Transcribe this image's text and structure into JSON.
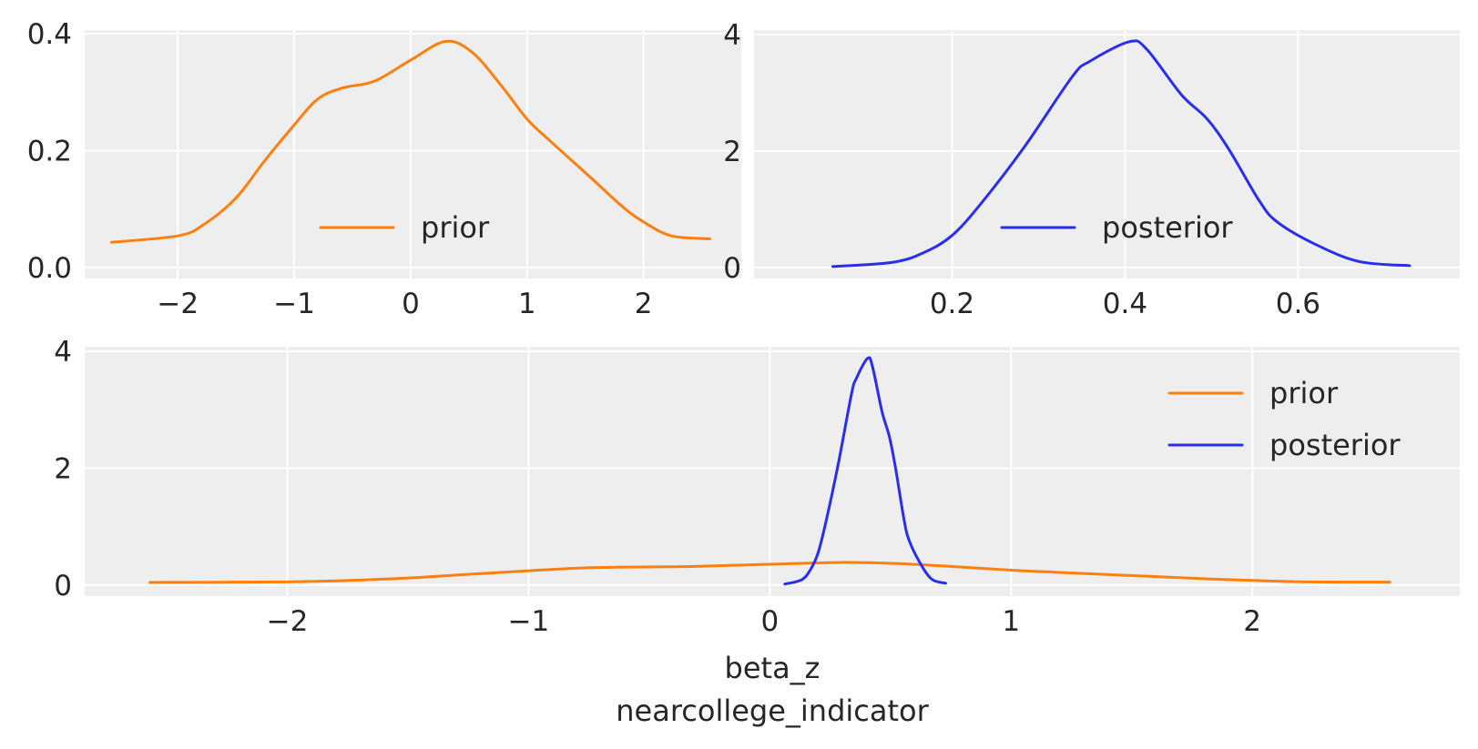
{
  "chart_data": [
    {
      "type": "line",
      "panel": "top-left",
      "xlim": [
        -2.8,
        2.84
      ],
      "ylim": [
        -0.019,
        0.4065
      ],
      "xticks": [
        "−2",
        "−1",
        "0",
        "1",
        "2"
      ],
      "xtick_values": [
        -2,
        -1,
        0,
        1,
        2
      ],
      "yticks": [
        "0.0",
        "0.2",
        "0.4"
      ],
      "ytick_values": [
        0,
        0.2,
        0.4
      ],
      "grid": true,
      "legend": "bottom-center",
      "series": [
        {
          "name": "prior",
          "color": "#ff7f0e",
          "x": [
            -2.57,
            -2.0,
            -1.78,
            -1.5,
            -1.26,
            -1.0,
            -0.8,
            -0.59,
            -0.31,
            0.0,
            0.3,
            0.53,
            0.78,
            1.0,
            1.19,
            1.54,
            1.82,
            2.0,
            2.24,
            2.57
          ],
          "y": [
            0.043,
            0.054,
            0.073,
            0.119,
            0.181,
            0.244,
            0.288,
            0.307,
            0.319,
            0.355,
            0.387,
            0.368,
            0.311,
            0.254,
            0.218,
            0.155,
            0.104,
            0.078,
            0.054,
            0.049
          ]
        }
      ]
    },
    {
      "type": "line",
      "panel": "top-right",
      "xlim": [
        -0.029,
        0.787
      ],
      "ylim": [
        -0.19,
        4.08
      ],
      "xticks": [
        "0.2",
        "0.4",
        "0.6"
      ],
      "xtick_values": [
        0.2,
        0.4,
        0.6
      ],
      "yticks": [
        "0",
        "2",
        "4"
      ],
      "ytick_values": [
        0,
        2,
        4
      ],
      "grid": true,
      "legend": "bottom-center",
      "series": [
        {
          "name": "posterior",
          "color": "#2a2eec",
          "x": [
            0.062,
            0.132,
            0.168,
            0.2,
            0.233,
            0.284,
            0.339,
            0.359,
            0.405,
            0.425,
            0.465,
            0.495,
            0.52,
            0.555,
            0.576,
            0.621,
            0.671,
            0.729
          ],
          "y": [
            0.016,
            0.09,
            0.26,
            0.55,
            1.09,
            2.08,
            3.28,
            3.54,
            3.88,
            3.75,
            2.97,
            2.55,
            2.03,
            1.15,
            0.78,
            0.39,
            0.1,
            0.03
          ]
        }
      ]
    },
    {
      "type": "line",
      "panel": "bottom",
      "xlim": [
        -2.84,
        2.86
      ],
      "ylim": [
        -0.19,
        4.08
      ],
      "xticks": [
        "−2",
        "−1",
        "0",
        "1",
        "2"
      ],
      "xtick_values": [
        -2,
        -1,
        0,
        1,
        2
      ],
      "yticks": [
        "0",
        "2",
        "4"
      ],
      "ytick_values": [
        0,
        2,
        4
      ],
      "xlabel": "beta_z",
      "xlabel2": "nearcollege_indicator",
      "grid": true,
      "legend": "top-right",
      "series": [
        {
          "name": "prior",
          "color": "#ff7f0e",
          "ref": 0
        },
        {
          "name": "posterior",
          "color": "#2a2eec",
          "ref": 1
        }
      ]
    }
  ],
  "colors": {
    "background": "#eeeeee",
    "grid": "#ffffff",
    "text": "#262626"
  }
}
